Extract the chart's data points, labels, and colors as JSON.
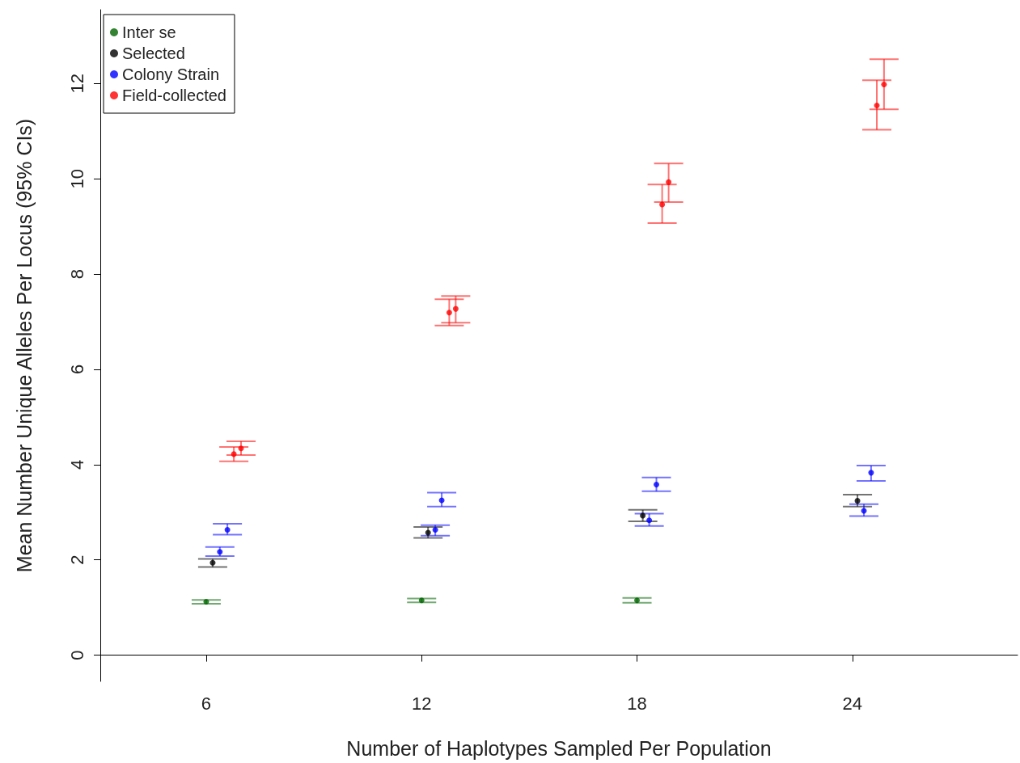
{
  "chart_data": {
    "type": "scatter",
    "xlabel": "Number of Haplotypes Sampled Per Population",
    "ylabel": "Mean Number Unique Alleles Per Locus (95% CIs)",
    "xlim": [
      3.05,
      28.6
    ],
    "xticks": [
      6,
      12,
      18,
      24
    ],
    "ylim": [
      -0.55,
      13.55
    ],
    "yticks": [
      0,
      2,
      4,
      6,
      8,
      10,
      12
    ],
    "grid": false,
    "legend": "top left",
    "marker": "circle",
    "series": [
      {
        "name": "Inter se",
        "color": "#006400",
        "x": [
          6,
          12,
          18
        ],
        "values": [
          1.12,
          1.15,
          1.15
        ],
        "errors": [
          [
            1.08,
            1.16
          ],
          [
            1.11,
            1.19
          ],
          [
            1.1,
            1.2
          ]
        ]
      },
      {
        "name": "Selected",
        "color": "#000000",
        "x": [
          6.18,
          12.18,
          18.16,
          24.14
        ],
        "values": [
          1.94,
          2.57,
          2.93,
          3.24
        ],
        "errors": [
          [
            1.85,
            2.02
          ],
          [
            2.46,
            2.69
          ],
          [
            2.81,
            3.05
          ],
          [
            3.12,
            3.37
          ]
        ]
      },
      {
        "name": "Colony Strain",
        "color": "#0000ff",
        "x": [
          6.38,
          6.59,
          12.38,
          12.56,
          18.34,
          18.54,
          24.32,
          24.52
        ],
        "values": [
          2.17,
          2.63,
          2.63,
          3.25,
          2.83,
          3.58,
          3.03,
          3.83
        ],
        "errors": [
          [
            2.08,
            2.27
          ],
          [
            2.53,
            2.76
          ],
          [
            2.51,
            2.73
          ],
          [
            3.12,
            3.41
          ],
          [
            2.71,
            2.97
          ],
          [
            3.44,
            3.73
          ],
          [
            2.92,
            3.17
          ],
          [
            3.66,
            3.98
          ]
        ]
      },
      {
        "name": "Field-collected",
        "color": "#ff0000",
        "x": [
          6.77,
          6.97,
          12.77,
          12.95,
          18.7,
          18.88,
          24.68,
          24.88
        ],
        "values": [
          4.22,
          4.34,
          7.19,
          7.27,
          9.46,
          9.93,
          11.54,
          11.98
        ],
        "errors": [
          [
            4.07,
            4.37
          ],
          [
            4.2,
            4.49
          ],
          [
            6.92,
            7.47
          ],
          [
            6.98,
            7.54
          ],
          [
            9.07,
            9.88
          ],
          [
            9.51,
            10.32
          ],
          [
            11.03,
            12.07
          ],
          [
            11.46,
            12.51
          ]
        ]
      }
    ]
  }
}
